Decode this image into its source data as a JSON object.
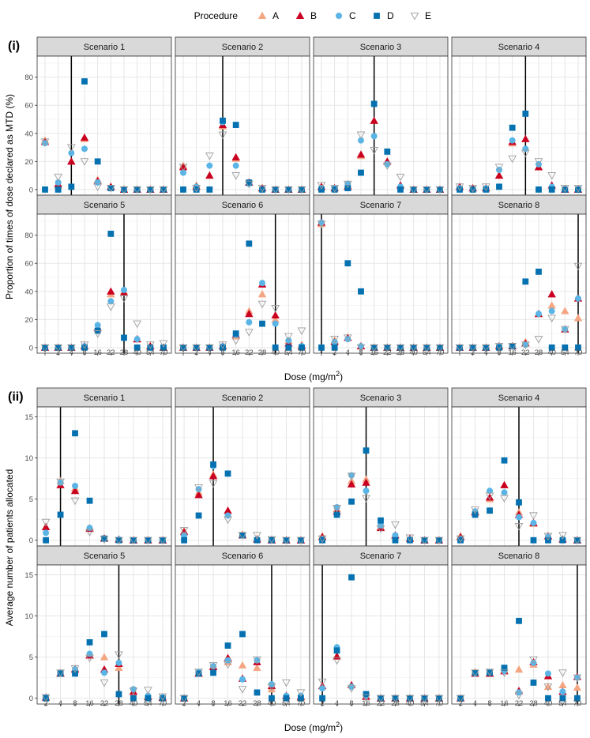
{
  "legend": {
    "title": "Procedure",
    "items": [
      {
        "key": "A",
        "label": "A",
        "color": "#F4A582",
        "shape": "triangle-up"
      },
      {
        "key": "B",
        "label": "B",
        "color": "#CA0020",
        "shape": "triangle-up"
      },
      {
        "key": "C",
        "label": "C",
        "color": "#5AB4E5",
        "shape": "circle"
      },
      {
        "key": "D",
        "label": "D",
        "color": "#0571B0",
        "shape": "square"
      },
      {
        "key": "E",
        "label": "E",
        "color": "#9E9E9E",
        "shape": "triangle-down-open"
      }
    ]
  },
  "chart_data": [
    {
      "type": "scatter",
      "part_label": "(i)",
      "ylabel": "Proportion of times of dose declared as MTD (%)",
      "xlabel": "Dose (mg/m",
      "xlabel_sup": "2",
      "xlabel_tail": ")",
      "categories": [
        "*",
        "2",
        "4",
        "8",
        "16",
        "22",
        "28",
        "40",
        "54",
        "70"
      ],
      "ylim": [
        -4,
        95
      ],
      "yticks": [
        0,
        20,
        40,
        60,
        80
      ],
      "panels": [
        {
          "title": "Scenario 1",
          "mtd": "4",
          "series": {
            "A": [
              35,
              3,
              20,
              36,
              7,
              2,
              0,
              0,
              0,
              0
            ],
            "B": [
              34,
              4,
              20,
              37,
              6,
              2,
              0,
              0,
              0,
              0
            ],
            "C": [
              33,
              5,
              26,
              29,
              5,
              1,
              0,
              0,
              0,
              0
            ],
            "D": [
              0,
              0,
              2,
              77,
              20,
              1,
              0,
              0,
              0,
              0
            ],
            "E": [
              34,
              9,
              30,
              20,
              2,
              1,
              0,
              0,
              0,
              0
            ]
          }
        },
        {
          "title": "Scenario 2",
          "mtd": "8",
          "series": {
            "A": [
              17,
              3,
              10,
              45,
              22,
              5,
              1,
              0,
              0,
              0
            ],
            "B": [
              16,
              2,
              10,
              46,
              23,
              5,
              1,
              0,
              0,
              0
            ],
            "C": [
              12,
              2,
              17,
              48,
              17,
              4,
              0,
              0,
              0,
              0
            ],
            "D": [
              0,
              0,
              0,
              49,
              46,
              5,
              0,
              0,
              0,
              0
            ],
            "E": [
              16,
              1,
              24,
              39,
              10,
              4,
              1,
              0,
              0,
              0
            ]
          }
        },
        {
          "title": "Scenario 3",
          "mtd": "16",
          "series": {
            "A": [
              2,
              1,
              3,
              24,
              49,
              20,
              3,
              0,
              0,
              0
            ],
            "B": [
              2,
              1,
              2,
              25,
              49,
              20,
              3,
              0,
              0,
              0
            ],
            "C": [
              1,
              1,
              4,
              35,
              38,
              18,
              2,
              0,
              0,
              0
            ],
            "D": [
              0,
              0,
              1,
              12,
              61,
              27,
              0,
              0,
              0,
              0
            ],
            "E": [
              3,
              1,
              4,
              39,
              28,
              17,
              9,
              0,
              0,
              0
            ]
          }
        },
        {
          "title": "Scenario 4",
          "mtd": "22",
          "series": {
            "A": [
              2,
              1,
              1,
              10,
              33,
              36,
              16,
              3,
              0,
              0
            ],
            "B": [
              2,
              1,
              1,
              10,
              34,
              36,
              16,
              3,
              0,
              0
            ],
            "C": [
              1,
              0,
              1,
              14,
              35,
              29,
              18,
              2,
              0,
              0
            ],
            "D": [
              0,
              0,
              0,
              2,
              44,
              54,
              0,
              0,
              0,
              0
            ],
            "E": [
              2,
              1,
              2,
              16,
              22,
              26,
              20,
              10,
              1,
              1
            ]
          }
        },
        {
          "title": "Scenario 5",
          "mtd": "28",
          "series": {
            "A": [
              0,
              0,
              0,
              1,
              14,
              38,
              40,
              6,
              1,
              0
            ],
            "B": [
              0,
              0,
              0,
              1,
              14,
              40,
              39,
              6,
              1,
              0
            ],
            "C": [
              0,
              0,
              0,
              1,
              16,
              33,
              41,
              6,
              0,
              0
            ],
            "D": [
              0,
              0,
              0,
              0,
              12,
              81,
              7,
              0,
              0,
              0
            ],
            "E": [
              0,
              0,
              0,
              2,
              10,
              29,
              35,
              17,
              2,
              3
            ]
          }
        },
        {
          "title": "Scenario 6",
          "mtd": "40",
          "series": {
            "A": [
              0,
              0,
              0,
              1,
              8,
              26,
              38,
              20,
              5,
              2
            ],
            "B": [
              0,
              0,
              0,
              1,
              9,
              24,
              45,
              23,
              3,
              1
            ],
            "C": [
              0,
              0,
              0,
              1,
              9,
              18,
              46,
              17,
              5,
              1
            ],
            "D": [
              0,
              0,
              0,
              0,
              10,
              74,
              17,
              0,
              0,
              0
            ],
            "E": [
              0,
              0,
              0,
              2,
              5,
              11,
              31,
              28,
              8,
              12
            ]
          }
        },
        {
          "title": "Scenario 7",
          "mtd": "*",
          "series": {
            "A": [
              88,
              5,
              7,
              1,
              0,
              0,
              0,
              0,
              0,
              0
            ],
            "B": [
              89,
              4,
              7,
              1,
              0,
              0,
              0,
              0,
              0,
              0
            ],
            "C": [
              89,
              4,
              6,
              1,
              0,
              0,
              0,
              0,
              0,
              0
            ],
            "D": [
              0,
              0,
              60,
              40,
              0,
              0,
              0,
              0,
              0,
              0
            ],
            "E": [
              88,
              6,
              7,
              0,
              0,
              0,
              0,
              0,
              0,
              0
            ]
          }
        },
        {
          "title": "Scenario 8",
          "mtd": "70",
          "series": {
            "A": [
              0,
              0,
              0,
              1,
              1,
              4,
              24,
              30,
              26,
              21
            ],
            "B": [
              0,
              0,
              0,
              1,
              1,
              3,
              24,
              38,
              13,
              35
            ],
            "C": [
              0,
              0,
              0,
              1,
              1,
              2,
              24,
              26,
              13,
              35
            ],
            "D": [
              0,
              0,
              0,
              0,
              1,
              47,
              54,
              0,
              0,
              0
            ],
            "E": [
              0,
              0,
              0,
              1,
              1,
              2,
              6,
              21,
              13,
              58
            ]
          }
        }
      ]
    },
    {
      "type": "scatter",
      "part_label": "(ii)",
      "ylabel": "Average number of patients allocated",
      "xlabel": "Dose (mg/m",
      "xlabel_sup": "2",
      "xlabel_tail": ")",
      "categories": [
        "2",
        "4",
        "8",
        "16",
        "22",
        "28",
        "40",
        "54",
        "70"
      ],
      "ylim": [
        -0.7,
        16.2
      ],
      "yticks": [
        0,
        5,
        10,
        15
      ],
      "panels": [
        {
          "title": "Scenario 1",
          "mtd": "4",
          "series": {
            "A": [
              1.6,
              7.2,
              6.3,
              1.5,
              0.3,
              0.1,
              0,
              0,
              0
            ],
            "B": [
              1.6,
              6.7,
              6.0,
              1.4,
              0.2,
              0.1,
              0,
              0,
              0
            ],
            "C": [
              0.9,
              7.0,
              6.6,
              1.5,
              0.2,
              0.1,
              0,
              0,
              0
            ],
            "D": [
              0,
              3.1,
              13.0,
              4.8,
              0.2,
              0,
              0,
              0,
              0
            ],
            "E": [
              2.2,
              7.1,
              4.8,
              1.0,
              0.1,
              0,
              0,
              0,
              0
            ]
          }
        },
        {
          "title": "Scenario 2",
          "mtd": "8",
          "series": {
            "A": [
              1.1,
              5.8,
              8.0,
              3.6,
              0.7,
              0.2,
              0.1,
              0,
              0
            ],
            "B": [
              1.0,
              5.5,
              7.8,
              3.6,
              0.6,
              0.1,
              0,
              0,
              0
            ],
            "C": [
              0.6,
              6.2,
              9.0,
              3.0,
              0.6,
              0.1,
              0,
              0,
              0
            ],
            "D": [
              0,
              3.0,
              9.2,
              8.1,
              0.6,
              0,
              0,
              0,
              0
            ],
            "E": [
              1.2,
              6.4,
              6.9,
              2.5,
              0.6,
              0.6,
              0.1,
              0,
              0
            ]
          }
        },
        {
          "title": "Scenario 3",
          "mtd": "16",
          "series": {
            "A": [
              0.5,
              3.8,
              7.2,
              7.4,
              1.6,
              0.6,
              0.2,
              0,
              0
            ],
            "B": [
              0.4,
              3.5,
              6.8,
              7.0,
              1.5,
              0.6,
              0.2,
              0,
              0
            ],
            "C": [
              0.1,
              4.0,
              7.9,
              6.0,
              1.8,
              0.6,
              0.1,
              0,
              0
            ],
            "D": [
              0,
              3.1,
              4.7,
              10.9,
              2.4,
              0,
              0,
              0,
              0
            ],
            "E": [
              0.2,
              3.9,
              7.8,
              5.1,
              1.4,
              1.9,
              0.3,
              0,
              0
            ]
          }
        },
        {
          "title": "Scenario 4",
          "mtd": "22",
          "series": {
            "A": [
              0.5,
              3.5,
              5.0,
              6.7,
              3.4,
              2.0,
              0.5,
              0.1,
              0
            ],
            "B": [
              0.4,
              3.4,
              5.2,
              6.7,
              3.1,
              2.1,
              0.5,
              0.1,
              0
            ],
            "C": [
              0.1,
              3.5,
              6.0,
              5.8,
              2.8,
              2.1,
              0.4,
              0.1,
              0
            ],
            "D": [
              0,
              3.1,
              3.6,
              9.7,
              4.6,
              0,
              0,
              0,
              0
            ],
            "E": [
              0.2,
              3.7,
              5.4,
              5.1,
              1.7,
              3.0,
              0.5,
              0.6,
              0
            ]
          }
        },
        {
          "title": "Scenario 5",
          "mtd": "28",
          "series": {
            "A": [
              0.1,
              3.1,
              3.6,
              5.3,
              5.0,
              3.7,
              0.8,
              0.2,
              0.1
            ],
            "B": [
              0.1,
              3.0,
              3.5,
              5.2,
              3.5,
              4.2,
              0.8,
              0.2,
              0.1
            ],
            "C": [
              0.1,
              3.1,
              3.5,
              5.4,
              3.1,
              4.3,
              1.1,
              0.3,
              0.1
            ],
            "D": [
              0,
              3.0,
              3.0,
              6.8,
              7.8,
              0.5,
              0,
              0,
              0
            ],
            "E": [
              0.1,
              3.1,
              3.6,
              4.9,
              1.9,
              5.3,
              0.9,
              1.0,
              0.2
            ]
          }
        },
        {
          "title": "Scenario 6",
          "mtd": "40",
          "series": {
            "A": [
              0,
              3.1,
              3.9,
              4.4,
              4.0,
              3.7,
              1.1,
              0.3,
              0.1
            ],
            "B": [
              0,
              3.0,
              3.8,
              4.9,
              2.4,
              4.4,
              1.5,
              0.3,
              0.2
            ],
            "C": [
              0,
              3.2,
              3.9,
              4.6,
              2.3,
              4.6,
              1.7,
              0.3,
              0.3
            ],
            "D": [
              0,
              3.0,
              3.1,
              6.4,
              7.8,
              0.7,
              0,
              0,
              0
            ],
            "E": [
              0,
              3.2,
              4.0,
              4.1,
              1.1,
              4.7,
              1.4,
              1.9,
              0.7
            ]
          }
        },
        {
          "title": "Scenario 7",
          "mtd": "2",
          "series": {
            "A": [
              1.5,
              5.1,
              1.6,
              0.2,
              0,
              0,
              0,
              0,
              0
            ],
            "B": [
              1.5,
              5.1,
              1.6,
              0.2,
              0,
              0,
              0,
              0,
              0
            ],
            "C": [
              1.2,
              6.2,
              1.4,
              0.3,
              0,
              0,
              0,
              0,
              0
            ],
            "D": [
              0,
              5.8,
              14.7,
              0.5,
              0,
              0,
              0,
              0,
              0
            ],
            "E": [
              2.0,
              4.6,
              1.2,
              0.1,
              0,
              0,
              0,
              0,
              0
            ]
          }
        },
        {
          "title": "Scenario 8",
          "mtd": "70",
          "series": {
            "A": [
              0,
              3.2,
              3.1,
              3.4,
              3.5,
              4.1,
              1.4,
              1.6,
              1.3
            ],
            "B": [
              0,
              3.0,
              3.0,
              3.3,
              0.9,
              4.4,
              2.7,
              0.8,
              2.6
            ],
            "C": [
              0,
              3.0,
              3.1,
              3.3,
              0.7,
              4.3,
              3.0,
              0.8,
              2.5
            ],
            "D": [
              0,
              3.1,
              3.1,
              3.7,
              9.4,
              1.9,
              0,
              0,
              0
            ],
            "E": [
              0,
              3.1,
              3.2,
              3.1,
              0.4,
              4.7,
              1.4,
              3.1,
              2.5
            ]
          }
        }
      ]
    }
  ]
}
